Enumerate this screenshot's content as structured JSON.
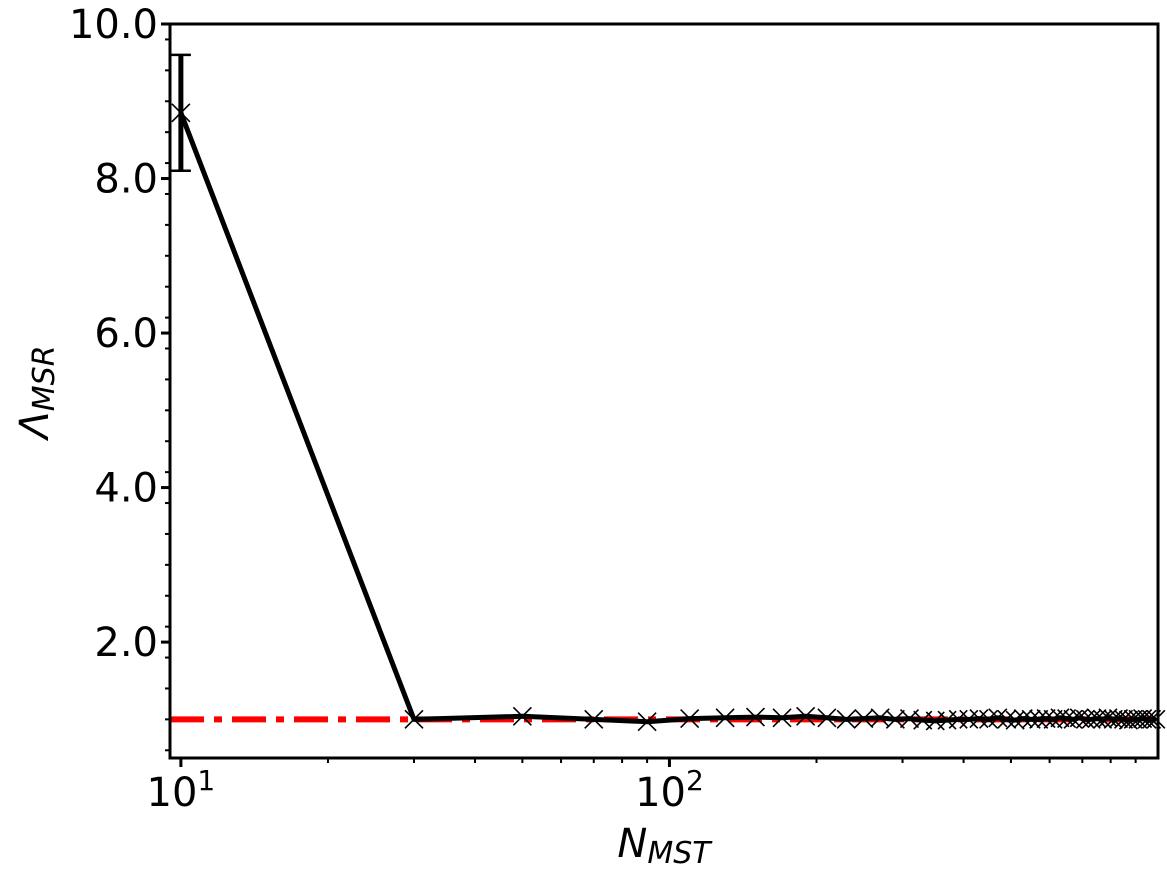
{
  "chart_data": {
    "type": "line",
    "xscale": "log",
    "xlabel": "N",
    "xlabel_sub": "MST",
    "ylabel": "Λ",
    "ylabel_sub": "MSR",
    "xlim": [
      9.5,
      1000
    ],
    "ylim": [
      0.5,
      10.0
    ],
    "y_ticks": [
      "2.0",
      "4.0",
      "6.0",
      "8.0",
      "10.0"
    ],
    "x_ticks": [
      {
        "base": "10",
        "exp": "1"
      },
      {
        "base": "10",
        "exp": "2"
      }
    ],
    "grid": false,
    "series": [
      {
        "style": "solid",
        "color": "#000000",
        "marker": "x",
        "x": [
          10,
          30,
          50,
          70,
          90,
          110,
          130,
          150,
          170,
          190,
          210,
          230,
          250,
          270,
          290,
          310,
          330,
          350,
          370,
          390,
          410,
          430,
          450,
          470,
          490,
          510,
          530,
          550,
          570,
          590,
          610,
          630,
          650,
          670,
          690,
          710,
          730,
          750,
          770,
          790,
          810,
          830,
          850,
          870,
          890,
          910,
          930,
          950,
          970,
          990
        ],
        "y": [
          8.85,
          1.0,
          1.04,
          1.0,
          0.97,
          1.01,
          1.02,
          1.03,
          1.02,
          1.04,
          1.02,
          1.0,
          1.01,
          1.02,
          1.0,
          1.01,
          0.99,
          0.98,
          0.99,
          1.0,
          1.0,
          1.01,
          1.0,
          1.02,
          1.0,
          0.99,
          1.01,
          1.0,
          1.0,
          1.01,
          1.0,
          1.02,
          1.01,
          1.0,
          1.02,
          1.0,
          1.0,
          1.01,
          1.0,
          1.02,
          1.0,
          1.01,
          1.0,
          0.99,
          1.0,
          1.0,
          1.01,
          1.0,
          1.0,
          1.0
        ],
        "error_bars": [
          {
            "x": 10,
            "low": 8.1,
            "high": 9.6
          }
        ]
      },
      {
        "style": "dashdot",
        "color": "#ff0000",
        "x": [
          9.5,
          1000
        ],
        "y": [
          1.0,
          1.0
        ]
      }
    ]
  }
}
